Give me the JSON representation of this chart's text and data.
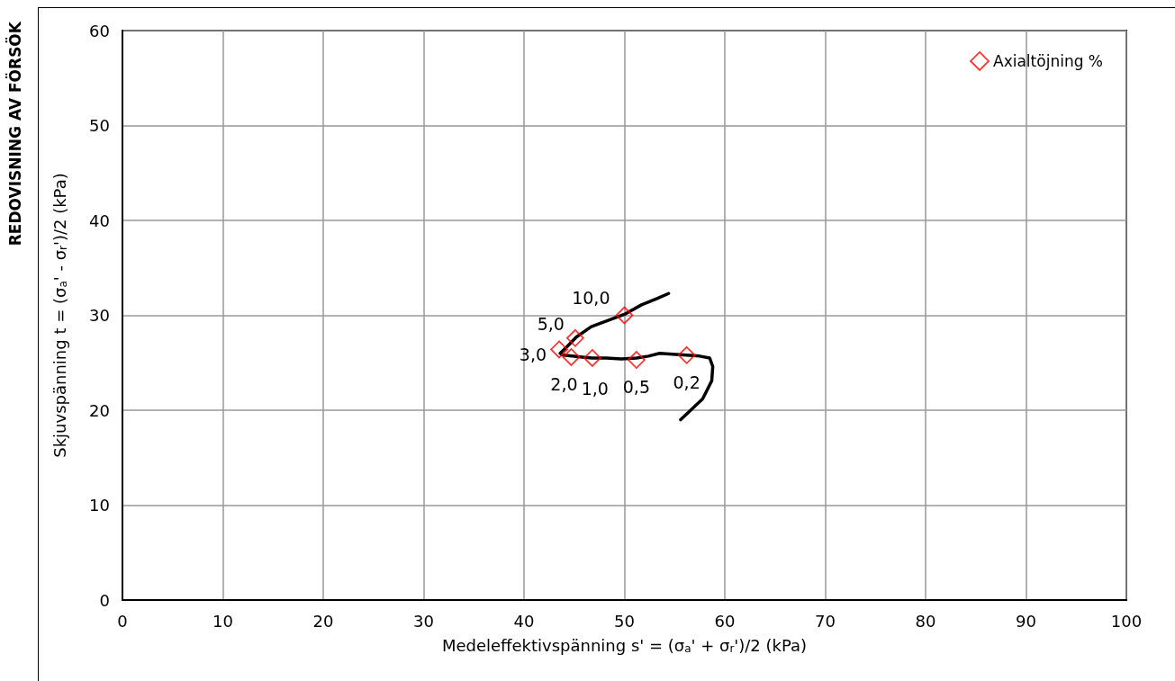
{
  "chart_data": {
    "type": "line",
    "title": "REDOVISNING AV FÖRSÖK",
    "xlabel": "Medeleffektivspänning s' = (σ$_{a}$' + σ$_{r}$')/2 (kPa)",
    "ylabel": "Skjuvspänning t = (σ$_{a}$' - σ$_{r}$')/2 (kPa)",
    "xlim": [
      0,
      100
    ],
    "xticks": [
      0,
      10,
      20,
      30,
      40,
      50,
      60,
      70,
      80,
      90,
      100
    ],
    "ylim": [
      0,
      60
    ],
    "yticks": [
      0,
      10,
      20,
      30,
      40,
      50,
      60
    ],
    "grid": true,
    "legend": "top right",
    "series": [
      {
        "color": "#000000",
        "marker": "none",
        "line_style": "solid",
        "x": [
          55.6,
          57.8,
          58.7,
          58.8,
          58.5,
          57.5,
          56.2,
          54.8,
          53.5,
          52.4,
          51.2,
          49.7,
          48.2,
          46.8,
          45.8,
          44.8,
          43.9,
          43.6,
          44.3,
          45.2,
          46.7,
          48.2,
          50.0,
          51.7,
          53.3,
          54.4
        ],
        "values": [
          19.0,
          21.2,
          23.1,
          24.6,
          25.5,
          25.7,
          25.8,
          25.9,
          26.0,
          25.7,
          25.5,
          25.4,
          25.5,
          25.5,
          25.6,
          25.7,
          25.8,
          26.0,
          26.7,
          27.7,
          28.8,
          29.4,
          30.1,
          31.1,
          31.8,
          32.3
        ]
      },
      {
        "type": "scatter",
        "name": "Axialtöjning %",
        "color": "#ff0000",
        "marker": "diamond",
        "x": [
          56.2,
          51.2,
          46.8,
          44.7,
          43.5,
          45.1,
          50.0
        ],
        "values": [
          25.8,
          25.3,
          25.5,
          25.6,
          26.4,
          27.6,
          30.0
        ]
      }
    ],
    "annotations": [
      {
        "text": "0,2",
        "x": 56.2,
        "y": 25.8
      },
      {
        "text": "0,5",
        "x": 51.2,
        "y": 25.3
      },
      {
        "text": "1,0",
        "x": 46.8,
        "y": 25.5
      },
      {
        "text": "2,0",
        "x": 44.7,
        "y": 25.6
      },
      {
        "text": "3,0",
        "x": 43.5,
        "y": 26.4
      },
      {
        "text": "5,0",
        "x": 45.1,
        "y": 27.6
      },
      {
        "text": "10,0",
        "x": 50.0,
        "y": 30.0
      }
    ]
  }
}
